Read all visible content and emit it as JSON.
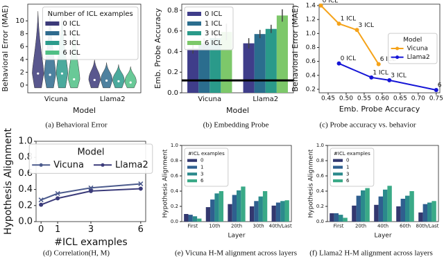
{
  "chart_data": [
    {
      "type": "violin",
      "caption": "(a) Behavioral Error",
      "y_label": "Behavioral Error (MAE)",
      "x_label": "Model",
      "categories": [
        "Vicuna",
        "Llama2"
      ],
      "ylim": [
        -1.2,
        12.6
      ],
      "yticks": [
        0,
        2,
        4,
        6,
        8,
        10
      ],
      "legend": "upper right",
      "legend_title": "Number of ICL examples",
      "series": [
        {
          "name": "0 ICL",
          "color": "#3c3a7a",
          "values": [
            1.8,
            0.8
          ],
          "max": [
            11.5,
            4.0
          ]
        },
        {
          "name": "1 ICL",
          "color": "#2f6b8e",
          "values": [
            1.6,
            0.7
          ],
          "max": [
            11.8,
            3.5
          ]
        },
        {
          "name": "3 ICL",
          "color": "#2b9b8c",
          "values": [
            1.8,
            0.6
          ],
          "max": [
            11.2,
            3.2
          ]
        },
        {
          "name": "6 ICL",
          "color": "#4fbf85",
          "values": [
            0.9,
            0.4
          ],
          "max": [
            10.0,
            2.9
          ]
        }
      ]
    },
    {
      "type": "bar",
      "caption": "(b) Embedding Probe",
      "y_label": "Emb. Probe Accuracy",
      "x_label": "Model",
      "categories": [
        "Vicuna",
        "Llama2"
      ],
      "ylim": [
        0,
        0.86
      ],
      "yticks": [
        {
          "value": 0,
          "label": "0.0"
        },
        0.2,
        0.4,
        0.6,
        0.8
      ],
      "hline": 0.12,
      "legend": "upper left",
      "series": [
        {
          "name": "0 ICL",
          "color": "#3f3d8a",
          "values": [
            0.43,
            0.48
          ],
          "errors": [
            0.05,
            0.05
          ]
        },
        {
          "name": "1 ICL",
          "color": "#2b6d8e",
          "values": [
            0.48,
            0.57
          ],
          "errors": [
            0.05,
            0.04
          ]
        },
        {
          "name": "3 ICL",
          "color": "#2a9a8a",
          "values": [
            0.53,
            0.62
          ],
          "errors": [
            0.07,
            0.04
          ]
        },
        {
          "name": "6 ICL",
          "color": "#7dc86a",
          "values": [
            0.59,
            0.75
          ],
          "errors": [
            0.08,
            0.06
          ]
        }
      ]
    },
    {
      "type": "scatter",
      "caption": "(c) Probe accuracy vs. behavior",
      "y_label": "Behavioral Error (MAE)",
      "x_label": "Emb. Probe Accuracy",
      "xlim": [
        0.425,
        0.76
      ],
      "ylim": [
        0.15,
        1.42
      ],
      "xticks": [
        0.45,
        {
          "value": 0.5,
          "label": "0.50"
        },
        0.55,
        {
          "value": 0.6,
          "label": "0.60"
        },
        0.65,
        {
          "value": 0.7,
          "label": "0.70"
        },
        0.75
      ],
      "yticks": [
        0.2,
        0.4,
        0.6,
        0.8,
        {
          "value": 1,
          "label": "1.0"
        },
        1.2,
        1.4
      ],
      "legend": "center right",
      "legend_title": "Model",
      "series": [
        {
          "name": "Vicuna",
          "color": "#f5a31a",
          "marker": "o",
          "x": [
            0.43,
            0.48,
            0.53,
            0.59
          ],
          "values": [
            1.4,
            1.14,
            1.05,
            0.56
          ],
          "labels": [
            "0 ICL",
            "1 ICL",
            "3 ICL",
            "6 ICL"
          ]
        },
        {
          "name": "Llama2",
          "color": "#1515d6",
          "marker": "o",
          "x": [
            0.48,
            0.57,
            0.62,
            0.75
          ],
          "values": [
            0.57,
            0.37,
            0.33,
            0.19
          ],
          "labels": [
            "0 ICL",
            "1 ICL",
            "3 ICL",
            "6 ICL"
          ]
        }
      ]
    },
    {
      "type": "line",
      "caption": "(d) Correlation(H, M)",
      "y_label": "Hypothesis Alignment",
      "x_label": "#ICL examples",
      "x": [
        0,
        1,
        3,
        6
      ],
      "xlim": [
        -0.3,
        6.3
      ],
      "xticks": [
        0,
        1,
        3,
        6
      ],
      "ylim": [
        0,
        1.0
      ],
      "yticks": [
        {
          "value": 0,
          "label": "0.0"
        },
        0.2,
        0.4,
        0.6,
        0.8,
        {
          "value": 1,
          "label": "1.0"
        }
      ],
      "legend": "upper center",
      "legend_title": "Model",
      "legend_ncol": 2,
      "series": [
        {
          "name": "Vicuna",
          "color": "#4b5a8c",
          "marker": "x",
          "values": [
            0.27,
            0.35,
            0.42,
            0.47
          ]
        },
        {
          "name": "Llama2",
          "color": "#3b3b7a",
          "marker": "o",
          "values": [
            0.21,
            0.29,
            0.38,
            0.41
          ]
        }
      ]
    },
    {
      "type": "bar",
      "caption": "(e) Vicuna H-M alignment across layers",
      "y_label": "Hypothesis Alignment",
      "x_label": "Layer",
      "categories": [
        "First",
        "10th",
        "20th",
        "30th",
        "40th/Last"
      ],
      "ylim": [
        0,
        1.0
      ],
      "yticks": [
        {
          "value": 0,
          "label": "0.0"
        },
        0.2,
        0.4,
        0.6,
        0.8,
        {
          "value": 1,
          "label": "1.0"
        }
      ],
      "legend": "upper left",
      "legend_title": "#ICL examples",
      "series": [
        {
          "name": "0",
          "color": "#33386f",
          "values": [
            0.1,
            0.19,
            0.23,
            0.2,
            0.21
          ]
        },
        {
          "name": "1",
          "color": "#2f5f8f",
          "values": [
            0.09,
            0.29,
            0.35,
            0.27,
            0.25
          ]
        },
        {
          "name": "3",
          "color": "#2b8a8c",
          "values": [
            0.07,
            0.37,
            0.41,
            0.33,
            0.27
          ]
        },
        {
          "name": "6",
          "color": "#3aaa87",
          "values": [
            0.04,
            0.4,
            0.46,
            0.4,
            0.28
          ]
        }
      ]
    },
    {
      "type": "bar",
      "caption": "(f) Llama2 H-M alignment across layers",
      "y_label": "Hypothesis Alignment",
      "x_label": "Layer",
      "categories": [
        "First",
        "20th",
        "40th",
        "60th",
        "80th/Last"
      ],
      "ylim": [
        0,
        1.0
      ],
      "yticks": [
        {
          "value": 0,
          "label": "0.0"
        },
        0.2,
        0.4,
        0.6,
        0.8,
        {
          "value": 1,
          "label": "1.0"
        }
      ],
      "legend": "upper left",
      "legend_title": "#ICL examples",
      "series": [
        {
          "name": "0",
          "color": "#33386f",
          "values": [
            0.11,
            0.21,
            0.22,
            0.2,
            0.12
          ]
        },
        {
          "name": "1",
          "color": "#2f5f8f",
          "values": [
            0.11,
            0.34,
            0.33,
            0.3,
            0.23
          ]
        },
        {
          "name": "3",
          "color": "#2b8a8c",
          "values": [
            0.09,
            0.41,
            0.42,
            0.34,
            0.25
          ]
        },
        {
          "name": "6",
          "color": "#3aaa87",
          "values": [
            0.05,
            0.44,
            0.47,
            0.4,
            0.27
          ]
        }
      ]
    }
  ]
}
